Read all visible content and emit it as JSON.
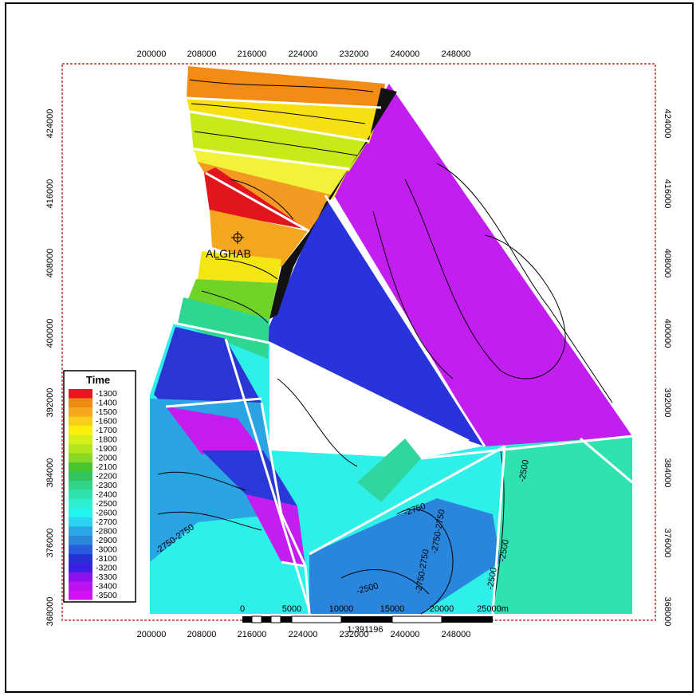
{
  "x_ticks": [
    "200000",
    "208000",
    "216000",
    "224000",
    "232000",
    "240000",
    "248000"
  ],
  "y_ticks": [
    "424000",
    "416000",
    "408000",
    "400000",
    "392000",
    "384000",
    "376000",
    "368000"
  ],
  "well_label": "ALGHAB",
  "legend": {
    "title": "Time",
    "entries": [
      {
        "label": "-1300",
        "color": "#e8151c"
      },
      {
        "label": "-1400",
        "color": "#f08a16"
      },
      {
        "label": "-1500",
        "color": "#f5a81e"
      },
      {
        "label": "-1600",
        "color": "#f7cf1a"
      },
      {
        "label": "-1700",
        "color": "#fbf00b"
      },
      {
        "label": "-1800",
        "color": "#d7ef17"
      },
      {
        "label": "-1900",
        "color": "#b4e51d"
      },
      {
        "label": "-2000",
        "color": "#8ad826"
      },
      {
        "label": "-2100",
        "color": "#47c62d"
      },
      {
        "label": "-2200",
        "color": "#2fc45d"
      },
      {
        "label": "-2300",
        "color": "#30d68a"
      },
      {
        "label": "-2400",
        "color": "#2fe3b0"
      },
      {
        "label": "-2500",
        "color": "#2eefd0"
      },
      {
        "label": "-2600",
        "color": "#22f4ee"
      },
      {
        "label": "-2700",
        "color": "#2bd3f0"
      },
      {
        "label": "-2800",
        "color": "#2aa6e5"
      },
      {
        "label": "-2900",
        "color": "#2a88db"
      },
      {
        "label": "-3000",
        "color": "#2a5ce0"
      },
      {
        "label": "-3100",
        "color": "#2631d5"
      },
      {
        "label": "-3200",
        "color": "#3a1fe3"
      },
      {
        "label": "-3300",
        "color": "#8e10ed"
      },
      {
        "label": "-3400",
        "color": "#bd12ef"
      },
      {
        "label": "-3500",
        "color": "#d012f2"
      }
    ]
  },
  "contour_labels": [
    "-2750-2750",
    "-2750",
    "-2750-2750",
    "-2750-2750",
    "-2500",
    "-2500",
    "-2500",
    "-2500"
  ],
  "scalebar": {
    "labels": [
      "0",
      "5000",
      "10000",
      "15000",
      "20000",
      "25000m"
    ],
    "ratio": "1:391196"
  },
  "colors": {
    "frame_red": "#c0392b",
    "fault": "#ffffff",
    "contour": "#000000"
  }
}
